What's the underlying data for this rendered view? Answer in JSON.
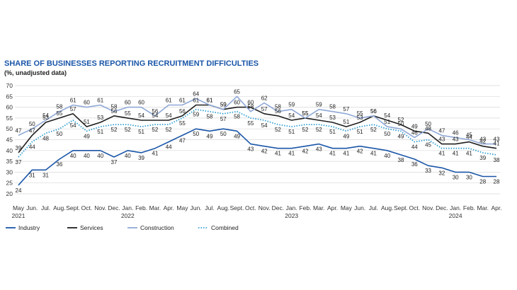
{
  "chart_data": {
    "type": "line",
    "title": "SHARE OF BUSINESSES REPORTING RECRUITMENT DIFFICULTIES",
    "subtitle": "(%, unadjusted data)",
    "ylim": [
      20,
      70
    ],
    "yticks": [
      "20",
      "25",
      "30",
      "35",
      "40",
      "45",
      "50",
      "55",
      "60",
      "65",
      "70"
    ],
    "grid": true,
    "legend_position": "bottom-left",
    "x_labels": [
      "May",
      "Jun.",
      "Jul.",
      "Aug.",
      "Sept.",
      "Oct.",
      "Nov.",
      "Dec.",
      "Jan.",
      "Feb.",
      "Mar.",
      "Apr.",
      "May",
      "Jun.",
      "Jul.",
      "Aug.",
      "Sept.",
      "Oct.",
      "Nov.",
      "Dec.",
      "Jan.",
      "Feb.",
      "Mar.",
      "Apr.",
      "May",
      "Jun.",
      "Jul.",
      "Aug.",
      "Sept.",
      "Oct.",
      "Nov.",
      "Dec.",
      "Jan.",
      "Feb.",
      "Mar.",
      "Apr."
    ],
    "year_labels": [
      {
        "index": 0,
        "label": "2021"
      },
      {
        "index": 8,
        "label": "2022"
      },
      {
        "index": 20,
        "label": "2023"
      },
      {
        "index": 32,
        "label": "2024"
      }
    ],
    "series": [
      {
        "name": "Industry",
        "color": "#1a56a8",
        "style": "solid",
        "width": 1.6,
        "values": [
          24,
          31,
          31,
          36,
          40,
          40,
          40,
          37,
          40,
          39,
          41,
          44,
          47,
          50,
          49,
          50,
          49,
          43,
          42,
          41,
          41,
          42,
          43,
          41,
          41,
          42,
          41,
          40,
          38,
          36,
          33,
          32,
          30,
          30,
          28,
          28
        ],
        "labels_above": false
      },
      {
        "name": "Services",
        "color": "#1e1e1e",
        "style": "solid",
        "width": 1.6,
        "values": [
          39,
          47,
          53,
          55,
          57,
          51,
          53,
          56,
          55,
          54,
          54,
          54,
          56,
          61,
          61,
          59,
          60,
          60,
          57,
          56,
          54,
          55,
          54,
          53,
          51,
          53,
          56,
          54,
          52,
          49,
          48,
          43,
          43,
          44,
          42,
          41
        ],
        "labels_above": true
      },
      {
        "name": "Construction",
        "color": "#8fa8d6",
        "style": "solid",
        "width": 1.6,
        "values": [
          47,
          50,
          54,
          58,
          61,
          60,
          61,
          58,
          60,
          60,
          56,
          61,
          61,
          64,
          61,
          59,
          65,
          58,
          62,
          58,
          59,
          55,
          59,
          58,
          57,
          55,
          56,
          51,
          50,
          46,
          50,
          47,
          46,
          45,
          43,
          43
        ],
        "labels_above": true
      },
      {
        "name": "Combined",
        "color": "#2f9fd4",
        "style": "dotted",
        "width": 1.8,
        "values": [
          37,
          44,
          48,
          50,
          54,
          49,
          51,
          52,
          52,
          51,
          52,
          52,
          55,
          59,
          58,
          57,
          58,
          55,
          54,
          52,
          51,
          52,
          52,
          51,
          49,
          51,
          52,
          50,
          49,
          44,
          45,
          41,
          41,
          41,
          39,
          38
        ],
        "labels_above": false
      }
    ]
  }
}
